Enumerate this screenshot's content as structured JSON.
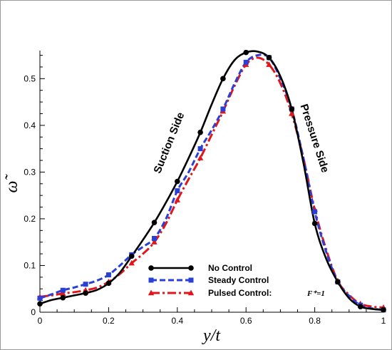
{
  "chart_data": {
    "type": "line",
    "title": "",
    "xlabel": "y/t",
    "ylabel": "ω̃",
    "xlim": [
      0,
      1
    ],
    "ylim": [
      0,
      0.56
    ],
    "xticks": [
      0,
      0.2,
      0.4,
      0.6,
      0.8,
      1
    ],
    "xtick_labels": [
      "0",
      "0.2",
      "0.4",
      "0.6",
      "0.8",
      "1"
    ],
    "yticks": [
      0,
      0.1,
      0.2,
      0.3,
      0.4,
      0.5
    ],
    "ytick_labels": [
      "0",
      "0.1",
      "0.2",
      "0.3",
      "0.4",
      "0.5"
    ],
    "grid": false,
    "legend_position": "bottom-center",
    "annotations": [
      {
        "text": "Suction Side",
        "x": 0.385,
        "y": 0.36,
        "rotation": -68
      },
      {
        "text": "Pressure Side",
        "x": 0.79,
        "y": 0.37,
        "rotation": 72
      }
    ],
    "series": [
      {
        "name": "No Control",
        "color": "#000000",
        "dash": "solid",
        "marker": "circle",
        "x": [
          0,
          0.067,
          0.133,
          0.2,
          0.267,
          0.333,
          0.4,
          0.467,
          0.533,
          0.6,
          0.667,
          0.733,
          0.8,
          0.867,
          0.933,
          1
        ],
        "y": [
          0.018,
          0.031,
          0.041,
          0.062,
          0.12,
          0.192,
          0.28,
          0.385,
          0.5,
          0.556,
          0.545,
          0.435,
          0.19,
          0.065,
          0.012,
          0.005
        ],
        "curve_x": [
          0,
          0.033,
          0.067,
          0.1,
          0.133,
          0.167,
          0.2,
          0.233,
          0.267,
          0.3,
          0.333,
          0.367,
          0.4,
          0.433,
          0.467,
          0.5,
          0.533,
          0.567,
          0.6,
          0.633,
          0.667,
          0.7,
          0.733,
          0.767,
          0.8,
          0.833,
          0.867,
          0.9,
          0.933,
          0.967,
          1
        ],
        "curve_y": [
          0.018,
          0.026,
          0.031,
          0.036,
          0.041,
          0.048,
          0.062,
          0.085,
          0.12,
          0.155,
          0.192,
          0.235,
          0.28,
          0.33,
          0.385,
          0.445,
          0.5,
          0.54,
          0.556,
          0.558,
          0.545,
          0.505,
          0.435,
          0.32,
          0.19,
          0.115,
          0.065,
          0.03,
          0.012,
          0.007,
          0.005
        ]
      },
      {
        "name": "Steady Control",
        "color": "#2a3fd6",
        "dash": "dashed",
        "marker": "square",
        "x": [
          0,
          0.067,
          0.133,
          0.2,
          0.267,
          0.333,
          0.4,
          0.467,
          0.533,
          0.6,
          0.667,
          0.733,
          0.8,
          0.867,
          0.933,
          1
        ],
        "y": [
          0.03,
          0.047,
          0.06,
          0.08,
          0.123,
          0.158,
          0.26,
          0.35,
          0.435,
          0.535,
          0.545,
          0.435,
          0.215,
          0.065,
          0.015,
          0.005
        ],
        "curve_x": [
          0,
          0.033,
          0.067,
          0.1,
          0.133,
          0.167,
          0.2,
          0.233,
          0.267,
          0.3,
          0.333,
          0.367,
          0.4,
          0.433,
          0.467,
          0.5,
          0.533,
          0.567,
          0.6,
          0.633,
          0.667,
          0.7,
          0.733,
          0.767,
          0.8,
          0.833,
          0.867,
          0.9,
          0.933,
          0.967,
          1
        ],
        "curve_y": [
          0.03,
          0.038,
          0.047,
          0.053,
          0.06,
          0.068,
          0.08,
          0.1,
          0.123,
          0.14,
          0.158,
          0.2,
          0.26,
          0.3,
          0.35,
          0.39,
          0.435,
          0.49,
          0.535,
          0.55,
          0.545,
          0.5,
          0.435,
          0.33,
          0.215,
          0.13,
          0.065,
          0.035,
          0.015,
          0.008,
          0.005
        ]
      },
      {
        "name": "Pulsed Control:",
        "name_suffix": "F⁺=1",
        "color": "#e0161b",
        "dash": "dashdot",
        "marker": "triangle",
        "x": [
          0,
          0.067,
          0.133,
          0.2,
          0.267,
          0.333,
          0.4,
          0.467,
          0.533,
          0.6,
          0.667,
          0.733,
          0.8,
          0.867,
          0.933,
          1
        ],
        "y": [
          0.033,
          0.04,
          0.047,
          0.065,
          0.105,
          0.15,
          0.24,
          0.33,
          0.43,
          0.53,
          0.53,
          0.425,
          0.22,
          0.067,
          0.018,
          0.01
        ],
        "curve_x": [
          0,
          0.033,
          0.067,
          0.1,
          0.133,
          0.167,
          0.2,
          0.233,
          0.267,
          0.3,
          0.333,
          0.367,
          0.4,
          0.433,
          0.467,
          0.5,
          0.533,
          0.567,
          0.6,
          0.633,
          0.667,
          0.7,
          0.733,
          0.767,
          0.8,
          0.833,
          0.867,
          0.9,
          0.933,
          0.967,
          1
        ],
        "curve_y": [
          0.033,
          0.036,
          0.04,
          0.043,
          0.047,
          0.053,
          0.065,
          0.082,
          0.105,
          0.125,
          0.15,
          0.19,
          0.24,
          0.285,
          0.33,
          0.38,
          0.43,
          0.485,
          0.53,
          0.545,
          0.53,
          0.49,
          0.425,
          0.33,
          0.22,
          0.135,
          0.067,
          0.037,
          0.018,
          0.012,
          0.01
        ]
      }
    ]
  }
}
